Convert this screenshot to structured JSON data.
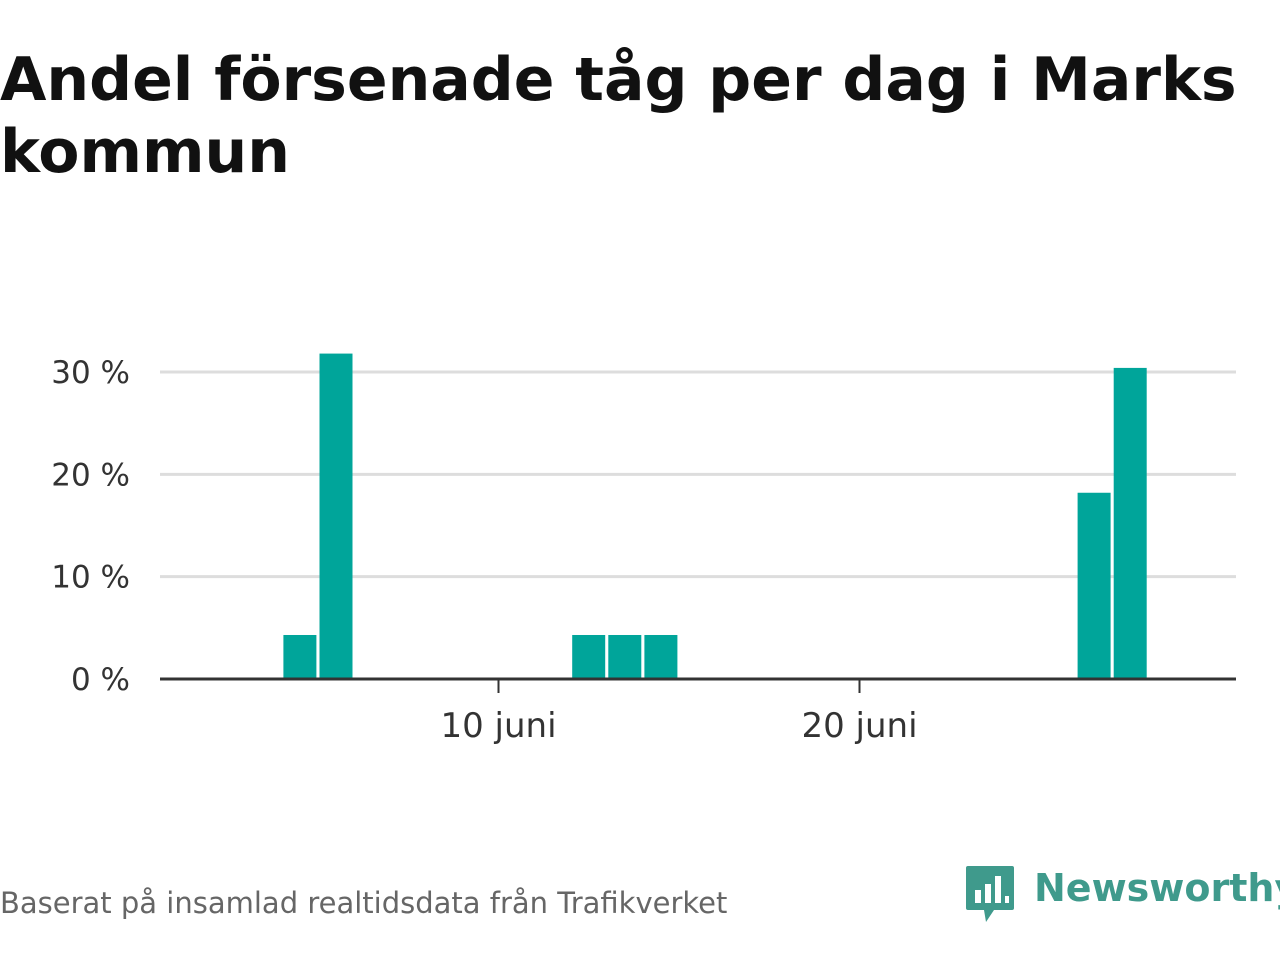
{
  "title": "Andel försenade tåg per dag i Marks kommun",
  "source": "Baserat på insamlad realtidsdata från Trafikverket",
  "brand": {
    "name": "Newsworthy",
    "icon": "bar-chart-speech-bubble-icon"
  },
  "colors": {
    "bar": "#00a59a",
    "grid": "#dddddd",
    "axis": "#333333",
    "brand": "#3f9a8c"
  },
  "chart_data": {
    "type": "bar",
    "title": "Andel försenade tåg per dag i Marks kommun",
    "x_unit": "day of June",
    "xlim": [
      1,
      30
    ],
    "x_ticks": [
      {
        "day": 10,
        "label": "10 juni"
      },
      {
        "day": 20,
        "label": "20 juni"
      }
    ],
    "ylim": [
      0,
      32
    ],
    "y_ticks": [
      {
        "value": 0,
        "label": "0 %"
      },
      {
        "value": 10,
        "label": "10 %"
      },
      {
        "value": 20,
        "label": "20 %"
      },
      {
        "value": 30,
        "label": "30 %"
      }
    ],
    "grid": true,
    "days": [
      4,
      5,
      12,
      13,
      14,
      26,
      27
    ],
    "values": [
      4.3,
      31.8,
      4.3,
      4.3,
      4.3,
      18.2,
      30.4
    ]
  }
}
